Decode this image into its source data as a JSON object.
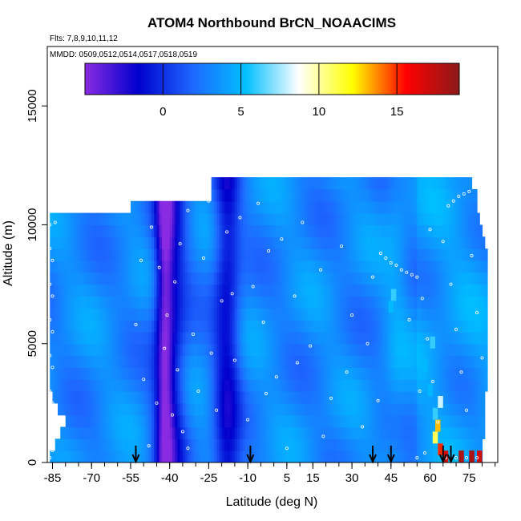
{
  "chart_data": {
    "type": "heatmap",
    "title": "ATOM4 Northbound BrCN_NOAACIMS",
    "flights_note": "Flts: 7,8,9,10,11,12",
    "dates_note": "MMDD: 0509,0512,0514,0517,0518,0519",
    "xlabel": "Latitude (deg N)",
    "ylabel": "Altitude (m)",
    "xlim": [
      -87,
      86
    ],
    "ylim": [
      0,
      17500
    ],
    "x_ticks": [
      -85,
      -70,
      -55,
      -40,
      -25,
      -10,
      5,
      15,
      30,
      45,
      60,
      75
    ],
    "y_ticks": [
      0,
      5000,
      10000,
      15000
    ],
    "colorbar": {
      "range": [
        -5,
        19
      ],
      "ticks": [
        0,
        5,
        10,
        15
      ],
      "colors": [
        "#8a2be2",
        "#0000cd",
        "#1e66ff",
        "#00bfff",
        "#ffffff",
        "#ffff00",
        "#ff0000",
        "#8b1a1a"
      ]
    },
    "arrow_latitudes": [
      -53,
      -9,
      38,
      45,
      65,
      68
    ],
    "altitude_bins": [
      {
        "alt": 200,
        "x0": -86,
        "x1": 80
      },
      {
        "alt": 500,
        "x0": -84,
        "x1": 80
      },
      {
        "alt": 1000,
        "x0": -82,
        "x1": 81
      },
      {
        "alt": 1500,
        "x0": -80,
        "x1": 81
      },
      {
        "alt": 2000,
        "x0": -83,
        "x1": 81
      },
      {
        "alt": 2500,
        "x0": -85,
        "x1": 81
      },
      {
        "alt": 3000,
        "x0": -86,
        "x1": 82
      },
      {
        "alt": 3500,
        "x0": -86,
        "x1": 82
      },
      {
        "alt": 4000,
        "x0": -86,
        "x1": 82
      },
      {
        "alt": 4500,
        "x0": -86,
        "x1": 82
      },
      {
        "alt": 5000,
        "x0": -86,
        "x1": 82
      },
      {
        "alt": 5500,
        "x0": -86,
        "x1": 82
      },
      {
        "alt": 6000,
        "x0": -86,
        "x1": 82
      },
      {
        "alt": 6500,
        "x0": -86,
        "x1": 82
      },
      {
        "alt": 7000,
        "x0": -86,
        "x1": 82
      },
      {
        "alt": 7500,
        "x0": -86,
        "x1": 82
      },
      {
        "alt": 8000,
        "x0": -86,
        "x1": 82
      },
      {
        "alt": 8500,
        "x0": -86,
        "x1": 82
      },
      {
        "alt": 9000,
        "x0": -86,
        "x1": 81
      },
      {
        "alt": 9500,
        "x0": -86,
        "x1": 80
      },
      {
        "alt": 10000,
        "x0": -86,
        "x1": 79
      },
      {
        "alt": 10500,
        "x0": -55,
        "x1": 78
      },
      {
        "alt": 11000,
        "x0": -24,
        "x1": 78
      },
      {
        "alt": 11500,
        "x0": -24,
        "x1": 76
      }
    ],
    "features": [
      {
        "lat": -40,
        "width": 6,
        "value": -3
      },
      {
        "lat": -18,
        "width": 5,
        "value": -2.5
      },
      {
        "lat": -42,
        "width": 3,
        "value": -2
      }
    ],
    "hotspots": [
      {
        "lat": 62,
        "alt": 1000,
        "value": 11
      },
      {
        "lat": 63,
        "alt": 1500,
        "value": 13
      },
      {
        "lat": 64,
        "alt": 500,
        "value": 15
      },
      {
        "lat": 66,
        "alt": 200,
        "value": 17
      },
      {
        "lat": 72,
        "alt": 200,
        "value": 18
      },
      {
        "lat": 76,
        "alt": 200,
        "value": 18
      },
      {
        "lat": 79,
        "alt": 200,
        "value": 17
      },
      {
        "lat": 64,
        "alt": 2500,
        "value": 8
      },
      {
        "lat": 46,
        "alt": 7000,
        "value": 6
      },
      {
        "lat": 45,
        "alt": 6500,
        "value": 5
      },
      {
        "lat": 61,
        "alt": 5000,
        "value": 6
      },
      {
        "lat": 58,
        "alt": 4000,
        "value": 5
      },
      {
        "lat": 60,
        "alt": 3000,
        "value": 5
      },
      {
        "lat": 62,
        "alt": 2000,
        "value": 6
      }
    ],
    "observation_points": [
      {
        "lat": -86,
        "alt": 200
      },
      {
        "lat": -86,
        "alt": 1500
      },
      {
        "lat": -86,
        "alt": 3000
      },
      {
        "lat": -86,
        "alt": 4500
      },
      {
        "lat": -86,
        "alt": 6000
      },
      {
        "lat": -86,
        "alt": 7500
      },
      {
        "lat": -86,
        "alt": 9000
      },
      {
        "lat": -86,
        "alt": 10000
      },
      {
        "lat": -85,
        "alt": 500
      },
      {
        "lat": -85,
        "alt": 2500
      },
      {
        "lat": -85,
        "alt": 4000
      },
      {
        "lat": -85,
        "alt": 5500
      },
      {
        "lat": -85,
        "alt": 7000
      },
      {
        "lat": -85,
        "alt": 8500
      },
      {
        "lat": -84,
        "alt": 10100
      },
      {
        "lat": -50,
        "alt": 3500
      },
      {
        "lat": -48,
        "alt": 700
      },
      {
        "lat": -45,
        "alt": 2500
      },
      {
        "lat": -44,
        "alt": 8200
      },
      {
        "lat": -42,
        "alt": 4800
      },
      {
        "lat": -41,
        "alt": 6200
      },
      {
        "lat": -38,
        "alt": 7600
      },
      {
        "lat": -36,
        "alt": 9200
      },
      {
        "lat": -35,
        "alt": 1300
      },
      {
        "lat": -33,
        "alt": 10600
      },
      {
        "lat": -31,
        "alt": 5400
      },
      {
        "lat": -29,
        "alt": 3000
      },
      {
        "lat": -27,
        "alt": 8600
      },
      {
        "lat": -25,
        "alt": 11000
      },
      {
        "lat": -22,
        "alt": 2200
      },
      {
        "lat": -20,
        "alt": 6800
      },
      {
        "lat": -18,
        "alt": 9700
      },
      {
        "lat": -15,
        "alt": 4300
      },
      {
        "lat": -13,
        "alt": 10300
      },
      {
        "lat": -10,
        "alt": 1800
      },
      {
        "lat": -8,
        "alt": 7400
      },
      {
        "lat": -6,
        "alt": 10900
      },
      {
        "lat": -4,
        "alt": 5900
      },
      {
        "lat": -2,
        "alt": 8900
      },
      {
        "lat": 1,
        "alt": 3600
      },
      {
        "lat": 3,
        "alt": 9400
      },
      {
        "lat": 5,
        "alt": 600
      },
      {
        "lat": 8,
        "alt": 7000
      },
      {
        "lat": 11,
        "alt": 10100
      },
      {
        "lat": 14,
        "alt": 4900
      },
      {
        "lat": 18,
        "alt": 8100
      },
      {
        "lat": 22,
        "alt": 2700
      },
      {
        "lat": 26,
        "alt": 9100
      },
      {
        "lat": 30,
        "alt": 6200
      },
      {
        "lat": 34,
        "alt": 1500
      },
      {
        "lat": 38,
        "alt": 7800
      },
      {
        "lat": 41,
        "alt": 8800
      },
      {
        "lat": 43,
        "alt": 8600
      },
      {
        "lat": 45,
        "alt": 8400
      },
      {
        "lat": 47,
        "alt": 8300
      },
      {
        "lat": 49,
        "alt": 8100
      },
      {
        "lat": 51,
        "alt": 8000
      },
      {
        "lat": 53,
        "alt": 7900
      },
      {
        "lat": 55,
        "alt": 7800
      },
      {
        "lat": 57,
        "alt": 6900
      },
      {
        "lat": 59,
        "alt": 5200
      },
      {
        "lat": 61,
        "alt": 3400
      },
      {
        "lat": 63,
        "alt": 1700
      },
      {
        "lat": 65,
        "alt": 9300
      },
      {
        "lat": 67,
        "alt": 10800
      },
      {
        "lat": 69,
        "alt": 11000
      },
      {
        "lat": 71,
        "alt": 11200
      },
      {
        "lat": 73,
        "alt": 11300
      },
      {
        "lat": 75,
        "alt": 11400
      },
      {
        "lat": 68,
        "alt": 7500
      },
      {
        "lat": 70,
        "alt": 5600
      },
      {
        "lat": 72,
        "alt": 3800
      },
      {
        "lat": 74,
        "alt": 2200
      },
      {
        "lat": 76,
        "alt": 8700
      },
      {
        "lat": 78,
        "alt": 6300
      },
      {
        "lat": 80,
        "alt": 4400
      },
      {
        "lat": 66,
        "alt": 200
      },
      {
        "lat": 70,
        "alt": 200
      },
      {
        "lat": 74,
        "alt": 200
      },
      {
        "lat": 78,
        "alt": 200
      },
      {
        "lat": 55,
        "alt": 200
      },
      {
        "lat": 58,
        "alt": 400
      },
      {
        "lat": 60,
        "alt": 9800
      },
      {
        "lat": -53,
        "alt": 5800
      },
      {
        "lat": -51,
        "alt": 8500
      },
      {
        "lat": -47,
        "alt": 9900
      },
      {
        "lat": -39,
        "alt": 2000
      },
      {
        "lat": -37,
        "alt": 3900
      },
      {
        "lat": -33,
        "alt": 600
      },
      {
        "lat": -24,
        "alt": 4600
      },
      {
        "lat": -16,
        "alt": 7100
      },
      {
        "lat": -3,
        "alt": 2900
      },
      {
        "lat": 9,
        "alt": 4200
      },
      {
        "lat": 19,
        "alt": 1100
      },
      {
        "lat": 28,
        "alt": 3800
      },
      {
        "lat": 36,
        "alt": 5000
      },
      {
        "lat": 40,
        "alt": 2600
      },
      {
        "lat": 52,
        "alt": 6000
      },
      {
        "lat": 56,
        "alt": 3000
      }
    ]
  }
}
